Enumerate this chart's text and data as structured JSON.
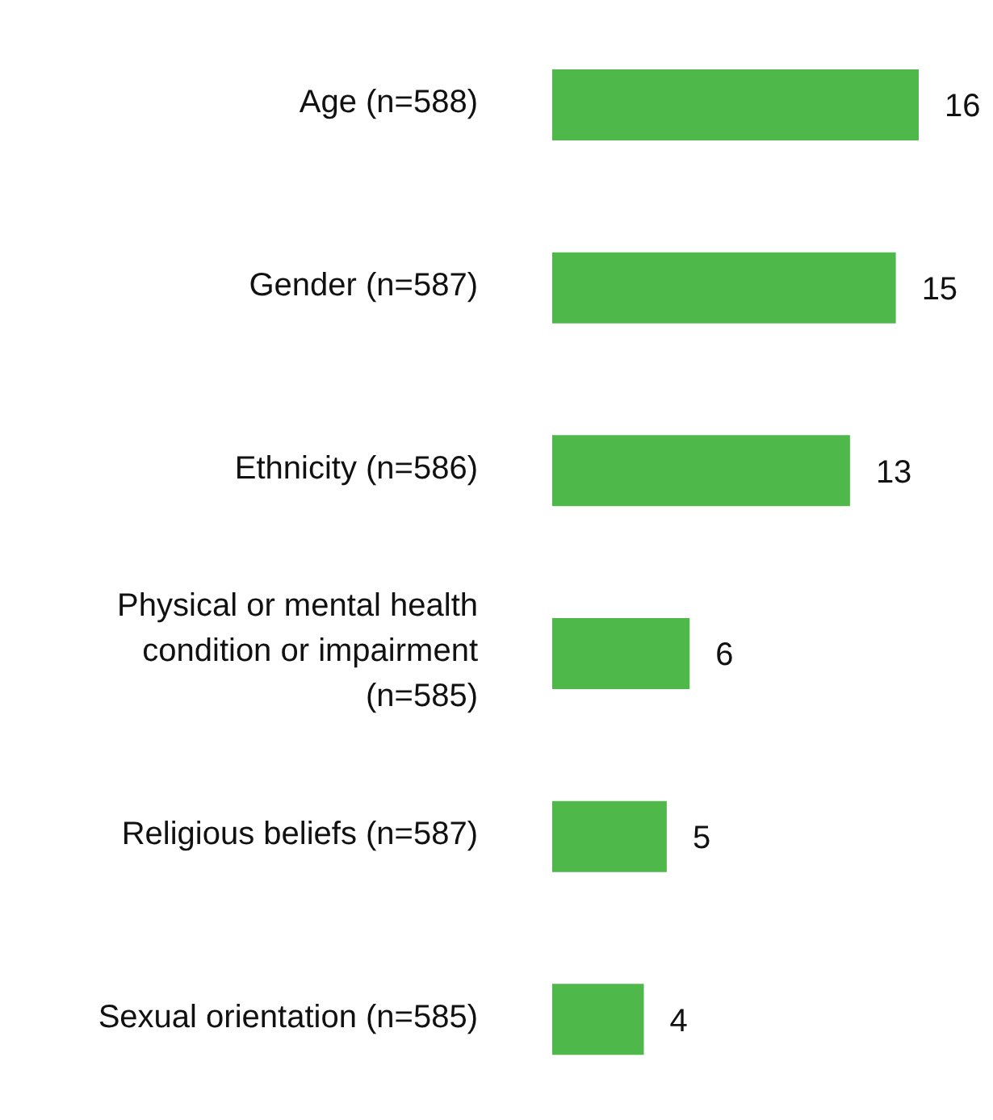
{
  "chart_data": {
    "type": "bar",
    "orientation": "horizontal",
    "data_labels": true,
    "categories": [
      "Age (n=588)",
      "Gender (n=587)",
      "Ethnicity (n=586)",
      "Physical or mental health condition or impairment (n=585)",
      "Religious beliefs (n=587)",
      "Sexual orientation (n=585)"
    ],
    "values": [
      16,
      15,
      13,
      6,
      5,
      4
    ],
    "color": "#4fb84a"
  }
}
